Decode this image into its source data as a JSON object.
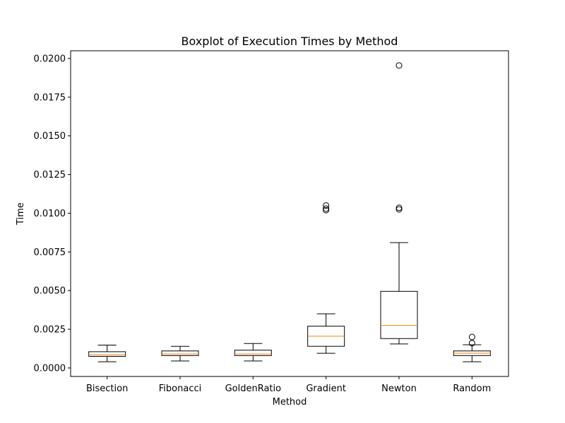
{
  "chart_data": {
    "type": "boxplot",
    "title": "Boxplot of Execution Times by Method",
    "xlabel": "Method",
    "ylabel": "Time",
    "ylim": [
      -0.00055,
      0.0205
    ],
    "yticks": [
      0.0,
      0.0025,
      0.005,
      0.0075,
      0.01,
      0.0125,
      0.015,
      0.0175,
      0.02
    ],
    "ytick_labels": [
      "0.0000",
      "0.0025",
      "0.0050",
      "0.0075",
      "0.0100",
      "0.0125",
      "0.0150",
      "0.0175",
      "0.0200"
    ],
    "categories": [
      "Bisection",
      "Fibonacci",
      "GoldenRatio",
      "Gradient",
      "Newton",
      "Random"
    ],
    "boxes": [
      {
        "whisker_low": 0.0004,
        "q1": 0.00075,
        "median": 0.00085,
        "q3": 0.00105,
        "whisker_high": 0.00148,
        "outliers": []
      },
      {
        "whisker_low": 0.00045,
        "q1": 0.0008,
        "median": 0.0009,
        "q3": 0.0011,
        "whisker_high": 0.0014,
        "outliers": []
      },
      {
        "whisker_low": 0.00045,
        "q1": 0.0008,
        "median": 0.0009,
        "q3": 0.00115,
        "whisker_high": 0.00158,
        "outliers": []
      },
      {
        "whisker_low": 0.00095,
        "q1": 0.0014,
        "median": 0.00205,
        "q3": 0.0027,
        "whisker_high": 0.0035,
        "outliers": [
          0.0102,
          0.0103,
          0.0105
        ]
      },
      {
        "whisker_low": 0.00155,
        "q1": 0.0019,
        "median": 0.00275,
        "q3": 0.00495,
        "whisker_high": 0.0081,
        "outliers": [
          0.01025,
          0.01035,
          0.01955
        ]
      },
      {
        "whisker_low": 0.0004,
        "q1": 0.0008,
        "median": 0.00095,
        "q3": 0.0011,
        "whisker_high": 0.0015,
        "outliers": [
          0.0016,
          0.002
        ]
      }
    ],
    "colors": {
      "box": "#000000",
      "median": "#ff7f0e",
      "outlier": "#000000"
    },
    "grid": false,
    "legend": "none"
  }
}
